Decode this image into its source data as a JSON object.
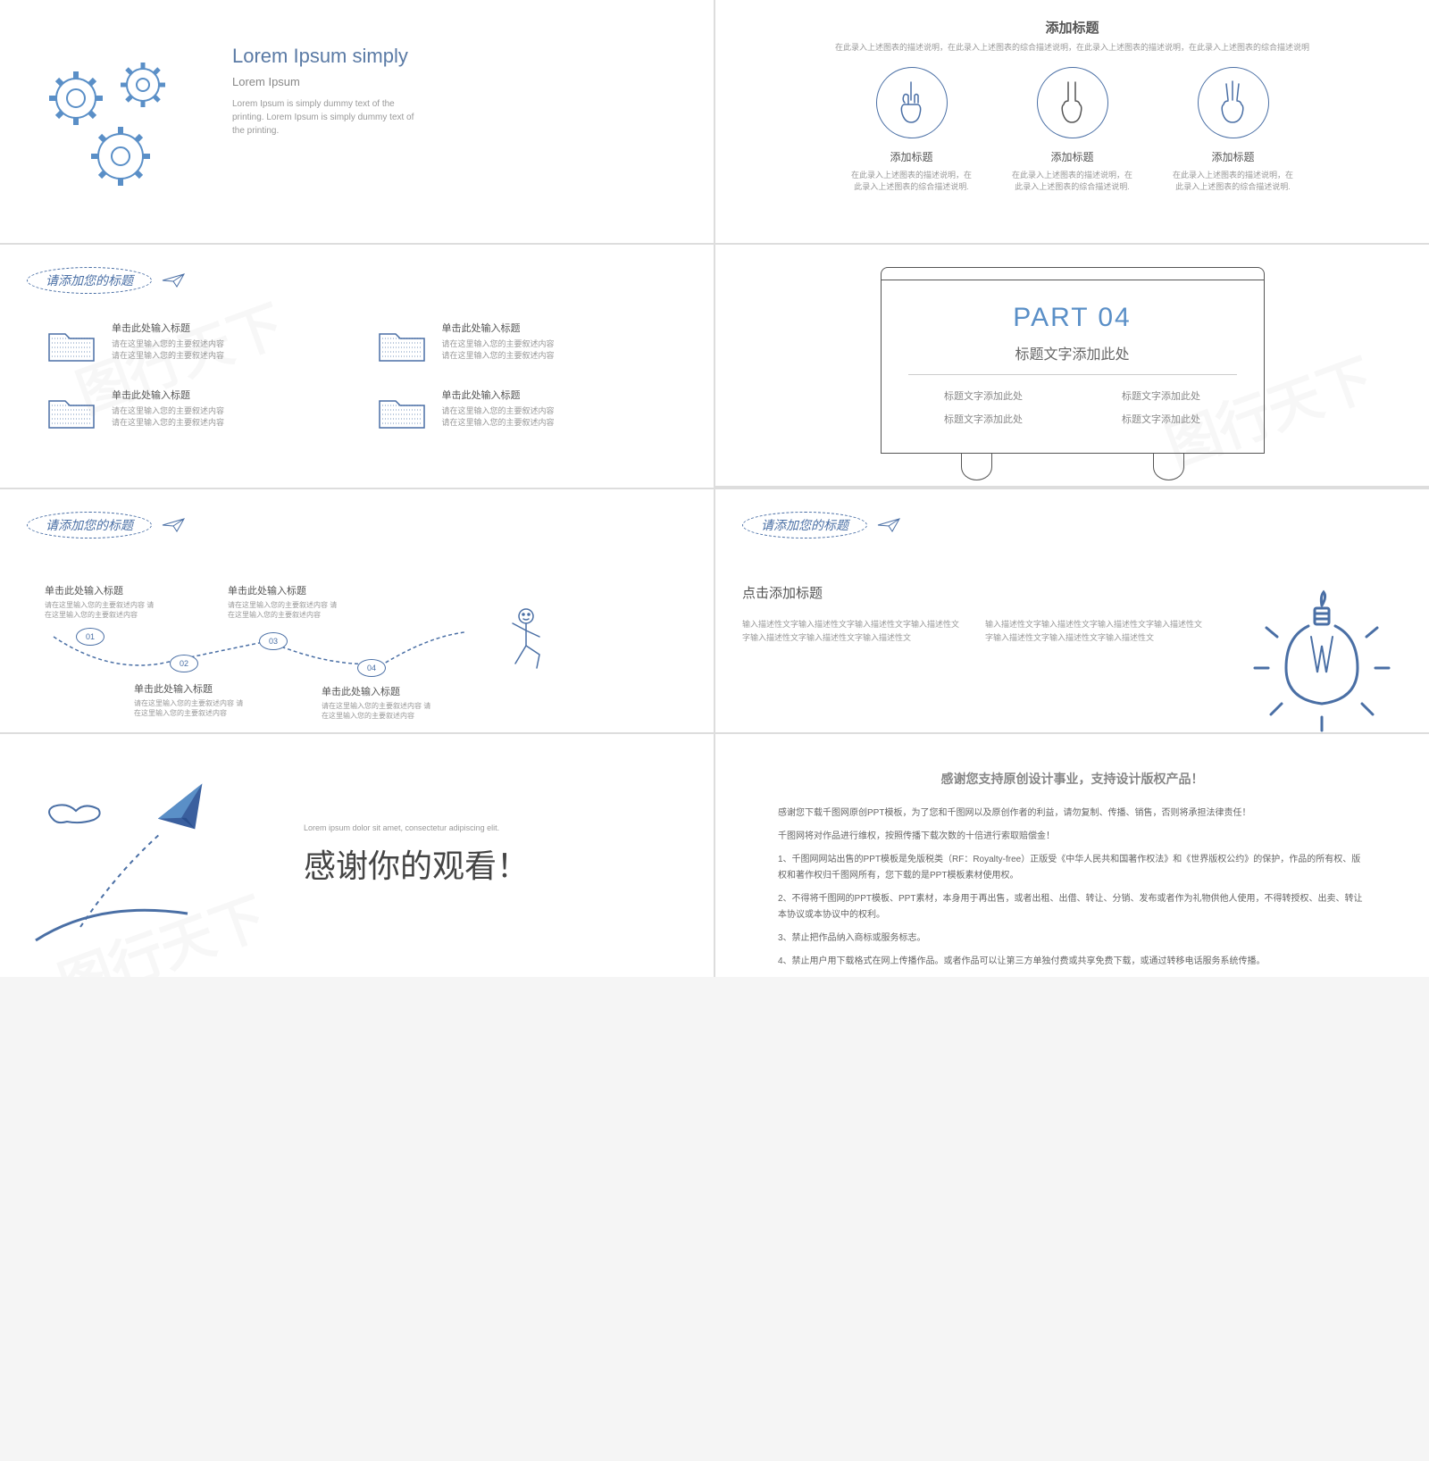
{
  "colors": {
    "accent": "#4a6fa5",
    "accent_light": "#5a8fc7",
    "text": "#555",
    "text_light": "#999",
    "gear_stroke": "#5a8fc7"
  },
  "watermark": "图行天下",
  "slide1": {
    "title": "Lorem Ipsum simply",
    "subtitle": "Lorem Ipsum",
    "body": "Lorem Ipsum is simply dummy text of the printing. Lorem Ipsum is simply dummy text of the printing."
  },
  "slide2": {
    "title": "添加标题",
    "sub": "在此录入上述图表的描述说明，在此录入上述图表的综合描述说明，在此录入上述图表的描述说明，在此录入上述图表的综合描述说明",
    "items": [
      {
        "label": "添加标题",
        "desc": "在此录入上述图表的描述说明，在此录入上述图表的综合描述说明."
      },
      {
        "label": "添加标题",
        "desc": "在此录入上述图表的描述说明，在此录入上述图表的综合描述说明."
      },
      {
        "label": "添加标题",
        "desc": "在此录入上述图表的描述说明，在此录入上述图表的综合描述说明."
      }
    ]
  },
  "slide3": {
    "header": "请添加您的标题",
    "items": [
      {
        "title": "单击此处输入标题",
        "desc": "请在这里输入您的主要叙述内容\n请在这里输入您的主要叙述内容"
      },
      {
        "title": "单击此处输入标题",
        "desc": "请在这里输入您的主要叙述内容\n请在这里输入您的主要叙述内容"
      },
      {
        "title": "单击此处输入标题",
        "desc": "请在这里输入您的主要叙述内容\n请在这里输入您的主要叙述内容"
      },
      {
        "title": "单击此处输入标题",
        "desc": "请在这里输入您的主要叙述内容\n请在这里输入您的主要叙述内容"
      }
    ]
  },
  "slide4": {
    "part": "PART",
    "num": "04",
    "subtitle": "标题文字添加此处",
    "items": [
      "标题文字添加此处",
      "标题文字添加此处",
      "标题文字添加此处",
      "标题文字添加此处"
    ]
  },
  "slide5": {
    "header": "请添加您的标题",
    "nodes": [
      "01",
      "02",
      "03",
      "04"
    ],
    "items": [
      {
        "title": "单击此处输入标题",
        "desc": "请在这里输入您的主要叙述内容\n请在这里输入您的主要叙述内容"
      },
      {
        "title": "单击此处输入标题",
        "desc": "请在这里输入您的主要叙述内容\n请在这里输入您的主要叙述内容"
      },
      {
        "title": "单击此处输入标题",
        "desc": "请在这里输入您的主要叙述内容\n请在这里输入您的主要叙述内容"
      },
      {
        "title": "单击此处输入标题",
        "desc": "请在这里输入您的主要叙述内容\n请在这里输入您的主要叙述内容"
      }
    ]
  },
  "slide6": {
    "header": "请添加您的标题",
    "title": "点击添加标题",
    "col1": "输入描述性文字输入描述性文字输入描述性文字输入描述性文字输入描述性文字输入描述性文字输入描述性文",
    "col2": "输入描述性文字输入描述性文字输入描述性文字输入描述性文字输入描述性文字输入描述性文字输入描述性文"
  },
  "slide7": {
    "mini": "Lorem ipsum dolor sit amet, consectetur adipiscing elit.",
    "thanks": "感谢你的观看！"
  },
  "slide8": {
    "title": "感谢您支持原创设计事业，支持设计版权产品！",
    "lines": [
      "感谢您下载千图网原创PPT模板，为了您和千图网以及原创作者的利益，请勿复制、传播、销售，否则将承担法律责任！",
      "千图网将对作品进行维权，按照传播下载次数的十倍进行索取赔偿金！",
      "1、千图网网站出售的PPT模板是免版税类（RF：Royalty-free）正版受《中华人民共和国著作权法》和《世界版权公约》的保护，作品的所有权、版权和著作权归千图网所有，您下载的是PPT模板素材使用权。",
      "2、不得将千图网的PPT模板、PPT素材，本身用于再出售，或者出租、出借、转让、分销、发布或者作为礼物供他人使用，不得转授权、出卖、转让本协议或本协议中的权利。",
      "3、禁止把作品纳入商标或服务标志。",
      "4、禁止用户用下载格式在网上传播作品。或者作品可以让第三方单独付费或共享免费下载，或通过转移电话服务系统传播。"
    ]
  }
}
